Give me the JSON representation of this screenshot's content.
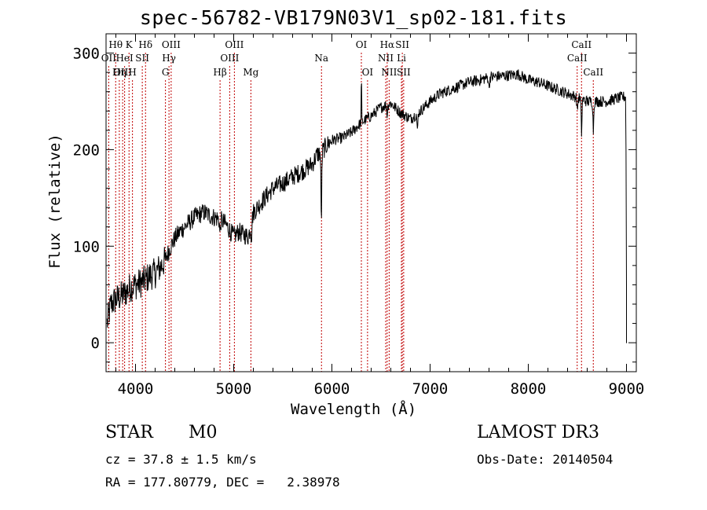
{
  "chart_data": {
    "type": "line",
    "title": "spec-56782-VB179N03V1_sp02-181.fits",
    "xlabel": "Wavelength (Å)",
    "ylabel": "Flux (relative)",
    "xlim": [
      3700,
      9100
    ],
    "ylim": [
      -30,
      320
    ],
    "xticks": [
      4000,
      5000,
      6000,
      7000,
      8000,
      9000
    ],
    "yticks": [
      0,
      100,
      200,
      300
    ],
    "spectrum_anchors": [
      [
        3710,
        20
      ],
      [
        3750,
        40
      ],
      [
        3800,
        45
      ],
      [
        3850,
        48
      ],
      [
        3900,
        52
      ],
      [
        3950,
        58
      ],
      [
        4000,
        60
      ],
      [
        4050,
        62
      ],
      [
        4100,
        65
      ],
      [
        4150,
        70
      ],
      [
        4200,
        72
      ],
      [
        4250,
        78
      ],
      [
        4300,
        85
      ],
      [
        4350,
        98
      ],
      [
        4400,
        108
      ],
      [
        4450,
        115
      ],
      [
        4500,
        120
      ],
      [
        4550,
        125
      ],
      [
        4600,
        130
      ],
      [
        4650,
        133
      ],
      [
        4700,
        135
      ],
      [
        4750,
        132
      ],
      [
        4800,
        130
      ],
      [
        4850,
        128
      ],
      [
        4900,
        125
      ],
      [
        4950,
        118
      ],
      [
        5000,
        110
      ],
      [
        5050,
        115
      ],
      [
        5100,
        112
      ],
      [
        5150,
        110
      ],
      [
        5200,
        135
      ],
      [
        5300,
        148
      ],
      [
        5400,
        160
      ],
      [
        5500,
        165
      ],
      [
        5600,
        172
      ],
      [
        5700,
        178
      ],
      [
        5800,
        185
      ],
      [
        5850,
        195
      ],
      [
        5900,
        198
      ],
      [
        5950,
        205
      ],
      [
        6000,
        210
      ],
      [
        6100,
        212
      ],
      [
        6200,
        218
      ],
      [
        6300,
        228
      ],
      [
        6400,
        235
      ],
      [
        6500,
        244
      ],
      [
        6600,
        248
      ],
      [
        6700,
        238
      ],
      [
        6800,
        232
      ],
      [
        6900,
        240
      ],
      [
        7000,
        250
      ],
      [
        7100,
        258
      ],
      [
        7200,
        262
      ],
      [
        7300,
        266
      ],
      [
        7400,
        270
      ],
      [
        7500,
        272
      ],
      [
        7600,
        275
      ],
      [
        7700,
        276
      ],
      [
        7800,
        277
      ],
      [
        7900,
        278
      ],
      [
        8000,
        272
      ],
      [
        8100,
        270
      ],
      [
        8200,
        266
      ],
      [
        8300,
        262
      ],
      [
        8400,
        258
      ],
      [
        8500,
        254
      ],
      [
        8600,
        250
      ],
      [
        8700,
        250
      ],
      [
        8800,
        250
      ],
      [
        8900,
        253
      ],
      [
        8990,
        255
      ]
    ],
    "absorption_features": [
      {
        "wave": 5892,
        "depth": 70
      },
      {
        "wave": 5180,
        "depth": 15
      },
      {
        "wave": 4860,
        "depth": 15
      },
      {
        "wave": 6563,
        "depth": 10
      },
      {
        "wave": 8498,
        "depth": 15
      },
      {
        "wave": 8542,
        "depth": 35
      },
      {
        "wave": 8662,
        "depth": 30
      },
      {
        "wave": 6870,
        "depth": 20
      },
      {
        "wave": 7600,
        "depth": 12
      }
    ],
    "emission_features": [
      {
        "wave": 6300,
        "height": 55
      }
    ],
    "line_marks": [
      {
        "label": "Hθ",
        "wave": 3798,
        "row": 0
      },
      {
        "label": "OII",
        "wave": 3727,
        "row": 1
      },
      {
        "label": "OIII",
        "wave": 3869,
        "row": 2
      },
      {
        "label": "K",
        "wave": 3934,
        "row": 0
      },
      {
        "label": "HeI",
        "wave": 3889,
        "row": 1
      },
      {
        "label": "Hη",
        "wave": 3835,
        "row": 2
      },
      {
        "label": "H",
        "wave": 3969,
        "row": 2
      },
      {
        "label": "SII",
        "wave": 4069,
        "row": 1
      },
      {
        "label": "Hδ",
        "wave": 4102,
        "row": 0
      },
      {
        "label": "OIII",
        "wave": 4363,
        "row": 0
      },
      {
        "label": "Hγ",
        "wave": 4341,
        "row": 1
      },
      {
        "label": "G",
        "wave": 4305,
        "row": 2
      },
      {
        "label": "OIII",
        "wave": 5007,
        "row": 0
      },
      {
        "label": "OIII",
        "wave": 4959,
        "row": 1
      },
      {
        "label": "Hβ",
        "wave": 4861,
        "row": 2
      },
      {
        "label": "Mg",
        "wave": 5175,
        "row": 2
      },
      {
        "label": "Na",
        "wave": 5894,
        "row": 1
      },
      {
        "label": "OI",
        "wave": 6300,
        "row": 0
      },
      {
        "label": "OI",
        "wave": 6363,
        "row": 2
      },
      {
        "label": "Hα",
        "wave": 6563,
        "row": 0
      },
      {
        "label": "NII",
        "wave": 6548,
        "row": 1
      },
      {
        "label": "NII",
        "wave": 6583,
        "row": 2
      },
      {
        "label": "SII",
        "wave": 6717,
        "row": 0
      },
      {
        "label": "Li",
        "wave": 6708,
        "row": 1
      },
      {
        "label": "SII",
        "wave": 6731,
        "row": 2
      },
      {
        "label": "CaII",
        "wave": 8542,
        "row": 0
      },
      {
        "label": "CaII",
        "wave": 8498,
        "row": 1
      },
      {
        "label": "CaII",
        "wave": 8662,
        "row": 2
      }
    ],
    "colors": {
      "spectrum": "#000000",
      "marker": "#c00000",
      "axis": "#000000"
    }
  },
  "info": {
    "object_class": "STAR",
    "subclass": "M0",
    "survey": "LAMOST DR3",
    "cz": "cz = 37.8 ± 1.5 km/s",
    "obs_date": "Obs-Date: 20140504",
    "coords": "RA = 177.80779, DEC =   2.38978"
  }
}
